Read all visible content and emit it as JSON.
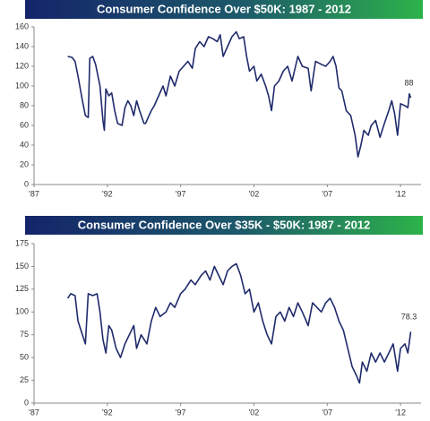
{
  "chart_data": [
    {
      "type": "line",
      "title": "Consumer Confidence Over $50K: 1987 - 2012",
      "annotation": "88",
      "xlim": [
        1987,
        2013.4
      ],
      "ylim": [
        0,
        160
      ],
      "yticks": [
        0,
        20,
        40,
        60,
        80,
        100,
        120,
        140,
        160
      ],
      "xticks": [
        {
          "value": 1987,
          "label": "'87"
        },
        {
          "value": 1992,
          "label": "'92"
        },
        {
          "value": 1997,
          "label": "'97"
        },
        {
          "value": 2002,
          "label": "'02"
        },
        {
          "value": 2007,
          "label": "'07"
        },
        {
          "value": 2012,
          "label": "'12"
        }
      ],
      "color": "#1f2a6b",
      "x": [
        1989.3,
        1989.6,
        1989.8,
        1990.0,
        1990.3,
        1990.5,
        1990.7,
        1990.8,
        1991.0,
        1991.2,
        1991.5,
        1991.7,
        1991.8,
        1991.9,
        1992.1,
        1992.3,
        1992.5,
        1992.7,
        1993.0,
        1993.2,
        1993.4,
        1993.6,
        1993.8,
        1994.0,
        1994.2,
        1994.5,
        1994.6,
        1995.0,
        1995.2,
        1995.5,
        1995.8,
        1996.0,
        1996.3,
        1996.6,
        1996.9,
        1997.2,
        1997.5,
        1997.8,
        1998.0,
        1998.3,
        1998.6,
        1998.9,
        1999.2,
        1999.5,
        1999.7,
        1999.9,
        2000.2,
        2000.5,
        2000.8,
        2001.0,
        2001.3,
        2001.5,
        2001.7,
        2002.0,
        2002.2,
        2002.5,
        2002.8,
        2003.0,
        2003.2,
        2003.4,
        2003.7,
        2004.0,
        2004.3,
        2004.6,
        2005.0,
        2005.3,
        2005.7,
        2005.9,
        2006.2,
        2006.6,
        2006.9,
        2007.2,
        2007.4,
        2007.6,
        2007.8,
        2008.0,
        2008.3,
        2008.6,
        2008.9,
        2009.1,
        2009.3,
        2009.5,
        2009.8,
        2010.0,
        2010.3,
        2010.6,
        2010.9,
        2011.2,
        2011.4,
        2011.6,
        2011.8,
        2012.0,
        2012.3,
        2012.5,
        2012.6,
        2012.7
      ],
      "values": [
        130,
        129,
        125,
        110,
        85,
        70,
        68,
        128,
        130,
        122,
        100,
        65,
        55,
        97,
        90,
        93,
        75,
        62,
        60,
        78,
        85,
        80,
        70,
        85,
        75,
        62,
        62,
        75,
        80,
        90,
        100,
        90,
        110,
        100,
        115,
        120,
        125,
        118,
        138,
        145,
        140,
        150,
        148,
        145,
        152,
        130,
        140,
        150,
        155,
        148,
        150,
        130,
        115,
        120,
        105,
        112,
        100,
        90,
        75,
        100,
        105,
        115,
        120,
        105,
        130,
        120,
        118,
        95,
        125,
        122,
        120,
        125,
        130,
        120,
        98,
        95,
        75,
        70,
        50,
        28,
        40,
        55,
        50,
        60,
        65,
        48,
        62,
        75,
        85,
        72,
        50,
        82,
        80,
        78,
        92,
        88
      ]
    },
    {
      "type": "line",
      "title": "Consumer Confidence Over $35K - $50K: 1987 - 2012",
      "annotation": "78.3",
      "xlim": [
        1987,
        2013.4
      ],
      "ylim": [
        0,
        175
      ],
      "yticks": [
        0,
        25,
        50,
        75,
        100,
        125,
        150,
        175
      ],
      "xticks": [
        {
          "value": 1987,
          "label": "'87"
        },
        {
          "value": 1992,
          "label": "'92"
        },
        {
          "value": 1997,
          "label": "'97"
        },
        {
          "value": 2002,
          "label": "'02"
        },
        {
          "value": 2007,
          "label": "'07"
        },
        {
          "value": 2012,
          "label": "'12"
        }
      ],
      "color": "#1f2a6b",
      "x": [
        1989.3,
        1989.5,
        1989.8,
        1990.0,
        1990.3,
        1990.5,
        1990.7,
        1991.0,
        1991.3,
        1991.5,
        1991.7,
        1991.9,
        1992.1,
        1992.3,
        1992.6,
        1992.9,
        1993.2,
        1993.5,
        1993.8,
        1994.0,
        1994.3,
        1994.7,
        1995.0,
        1995.3,
        1995.6,
        1996.0,
        1996.3,
        1996.6,
        1997.0,
        1997.3,
        1997.7,
        1998.0,
        1998.4,
        1998.7,
        1999.0,
        1999.3,
        1999.6,
        1999.9,
        2000.2,
        2000.5,
        2000.8,
        2001.1,
        2001.4,
        2001.7,
        2002.0,
        2002.3,
        2002.6,
        2002.9,
        2003.2,
        2003.5,
        2003.8,
        2004.1,
        2004.4,
        2004.7,
        2005.0,
        2005.3,
        2005.7,
        2006.0,
        2006.3,
        2006.6,
        2006.9,
        2007.2,
        2007.5,
        2007.8,
        2008.1,
        2008.4,
        2008.7,
        2009.0,
        2009.2,
        2009.4,
        2009.7,
        2010.0,
        2010.3,
        2010.6,
        2010.9,
        2011.2,
        2011.5,
        2011.8,
        2012.0,
        2012.3,
        2012.5,
        2012.7
      ],
      "values": [
        115,
        120,
        118,
        90,
        75,
        65,
        120,
        118,
        120,
        100,
        70,
        55,
        85,
        80,
        60,
        50,
        65,
        75,
        85,
        60,
        75,
        65,
        90,
        105,
        95,
        100,
        110,
        105,
        120,
        125,
        135,
        130,
        140,
        145,
        135,
        150,
        140,
        130,
        145,
        150,
        153,
        140,
        120,
        125,
        100,
        110,
        90,
        75,
        65,
        95,
        100,
        90,
        105,
        95,
        110,
        100,
        85,
        110,
        105,
        100,
        110,
        115,
        105,
        90,
        80,
        60,
        40,
        30,
        22,
        45,
        35,
        55,
        45,
        55,
        45,
        55,
        65,
        35,
        60,
        65,
        55,
        78.3
      ]
    }
  ]
}
